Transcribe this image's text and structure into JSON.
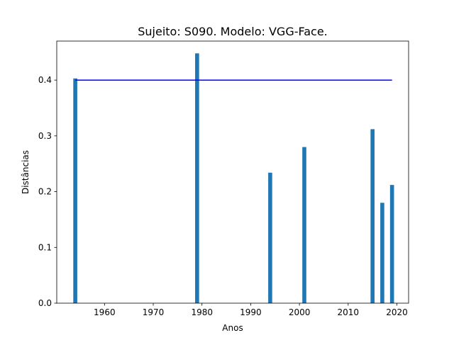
{
  "chart_data": {
    "type": "bar",
    "title": "Sujeito: S090. Modelo: VGG-Face.",
    "xlabel": "Anos",
    "ylabel": "Distâncias",
    "x": [
      1954,
      1979,
      1994,
      2001,
      2015,
      2017,
      2019
    ],
    "values": [
      0.403,
      0.448,
      0.234,
      0.28,
      0.312,
      0.18,
      0.212
    ],
    "bar_color": "#1f77b4",
    "xlim": [
      1950.2,
      2022.4
    ],
    "ylim": [
      0,
      0.47
    ],
    "xticks": [
      1960,
      1970,
      1980,
      1990,
      2000,
      2010,
      2020
    ],
    "yticks": [
      0.0,
      0.1,
      0.2,
      0.3,
      0.4
    ],
    "ytick_labels": [
      "0.0",
      "0.1",
      "0.2",
      "0.3",
      "0.4"
    ],
    "threshold_line": {
      "y": 0.4,
      "x_range": [
        1954,
        2019
      ],
      "color": "#0000ff"
    },
    "grid": false
  }
}
